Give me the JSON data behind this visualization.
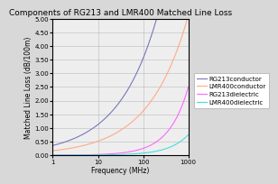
{
  "title": "Components of RG213 and LMR400 Matched Line Loss",
  "xlabel": "Frequency (MHz)",
  "ylabel": "Matched Line Loss (dB/100m)",
  "xmin": 1,
  "xmax": 1000,
  "ymin": 0.0,
  "ymax": 5.0,
  "yticks": [
    0.0,
    0.5,
    1.0,
    1.5,
    2.0,
    2.5,
    3.0,
    3.5,
    4.0,
    4.5,
    5.0
  ],
  "legend": [
    "RG213conductor",
    "LMR400conductor",
    "RG213dielectric",
    "LMR400dielectric"
  ],
  "colors": [
    "#7777bb",
    "#ffaa88",
    "#ff66ff",
    "#44dddd"
  ],
  "bg_color": "#d8d8d8",
  "plot_bg": "#eeeeee",
  "rg213_conductor_k": 0.355,
  "lmr400_conductor_k": 0.162,
  "rg213_dielectric_k": 0.0025,
  "lmr400_dielectric_k": 0.00075,
  "title_fontsize": 6.5,
  "label_fontsize": 5.5,
  "tick_fontsize": 5,
  "legend_fontsize": 5
}
